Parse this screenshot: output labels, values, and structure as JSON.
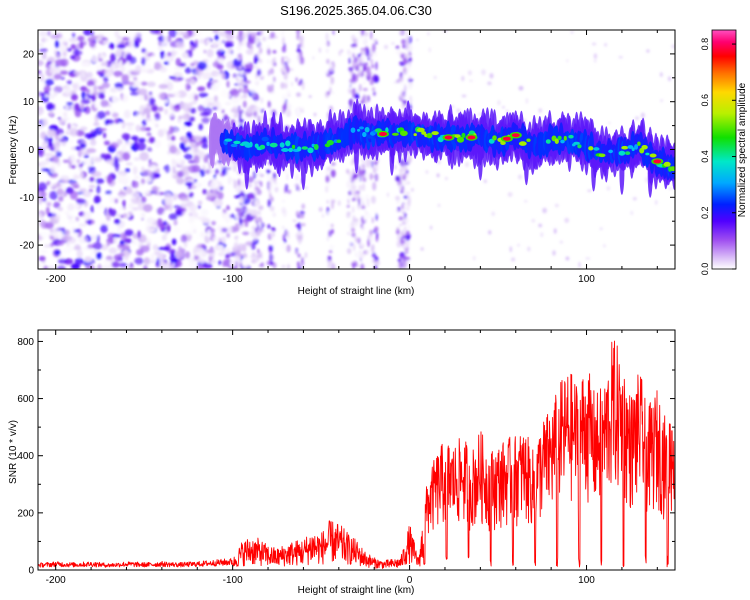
{
  "title": "S196.2025.365.04.06.C30",
  "colors": {
    "line": "#ff0000",
    "axis": "#000000",
    "background": "#ffffff"
  },
  "chart_data": [
    {
      "type": "heatmap",
      "name": "spectrogram",
      "xlabel": "Height of straight line (km)",
      "ylabel": "Frequency (Hz)",
      "xlim": [
        -210,
        150
      ],
      "ylim": [
        -25,
        25
      ],
      "x_ticks": [
        -200,
        -100,
        0,
        100
      ],
      "y_ticks": [
        -20,
        -10,
        0,
        10,
        20
      ],
      "colorbar": {
        "label": "Normalized spectral amplitude",
        "range": [
          0,
          0.85
        ],
        "ticks": [
          0.0,
          0.2,
          0.4,
          0.6,
          0.8
        ],
        "colormap": [
          "#ffffff",
          "#d8c0f5",
          "#8a3cf0",
          "#3d00ff",
          "#0030ff",
          "#00b0ff",
          "#00e5c0",
          "#20e000",
          "#c8f000",
          "#ffd000",
          "#ff7a00",
          "#ff0000",
          "#ff0080",
          "#ff60c0"
        ]
      },
      "ridge": {
        "description": "signal band",
        "x": [
          -110,
          -100,
          -90,
          -80,
          -70,
          -60,
          -50,
          -40,
          -30,
          -20,
          -10,
          0,
          10,
          20,
          30,
          40,
          50,
          60,
          70,
          80,
          90,
          100,
          110,
          120,
          130,
          140,
          150
        ],
        "freq": [
          2.5,
          1.0,
          0.5,
          1.5,
          0.5,
          0.5,
          1.0,
          2.5,
          4.0,
          3.0,
          3.5,
          4.0,
          3.0,
          2.5,
          2.5,
          2.5,
          1.5,
          3.0,
          0.5,
          2.0,
          2.0,
          1.0,
          -1.0,
          -0.5,
          1.0,
          -2.5,
          -3.5
        ],
        "amplitude": [
          0.25,
          0.45,
          0.45,
          0.5,
          0.5,
          0.5,
          0.55,
          0.5,
          0.5,
          0.45,
          0.6,
          0.75,
          0.7,
          0.6,
          0.65,
          0.7,
          0.65,
          0.75,
          0.6,
          0.6,
          0.6,
          0.65,
          0.55,
          0.6,
          0.55,
          0.75,
          0.5
        ]
      }
    },
    {
      "type": "line",
      "name": "snr",
      "xlabel": "Height of straight line (km)",
      "ylabel": "SNR (10 * v/v)",
      "xlim": [
        -210,
        150
      ],
      "ylim": [
        0,
        840
      ],
      "x_ticks": [
        -200,
        -100,
        0,
        100
      ],
      "y_ticks": [
        0,
        200,
        400,
        600,
        800
      ],
      "series": [
        {
          "name": "SNR",
          "color": "#ff0000",
          "x": [
            -210,
            -200,
            -190,
            -180,
            -170,
            -160,
            -150,
            -140,
            -130,
            -120,
            -110,
            -100,
            -95,
            -90,
            -85,
            -80,
            -75,
            -70,
            -65,
            -60,
            -55,
            -50,
            -45,
            -40,
            -35,
            -30,
            -25,
            -20,
            -15,
            -10,
            -5,
            0,
            5,
            10,
            15,
            20,
            25,
            30,
            35,
            40,
            45,
            50,
            55,
            60,
            65,
            70,
            75,
            80,
            85,
            90,
            95,
            100,
            105,
            110,
            115,
            120,
            125,
            130,
            135,
            140,
            145,
            150
          ],
          "y": [
            20,
            25,
            22,
            25,
            20,
            25,
            22,
            25,
            22,
            25,
            30,
            35,
            90,
            110,
            100,
            80,
            70,
            85,
            95,
            100,
            130,
            120,
            160,
            150,
            120,
            95,
            60,
            40,
            30,
            35,
            40,
            150,
            40,
            290,
            370,
            420,
            400,
            430,
            380,
            450,
            380,
            400,
            420,
            430,
            450,
            380,
            480,
            520,
            600,
            640,
            600,
            660,
            560,
            600,
            750,
            680,
            560,
            640,
            520,
            580,
            480,
            560
          ]
        }
      ]
    }
  ]
}
